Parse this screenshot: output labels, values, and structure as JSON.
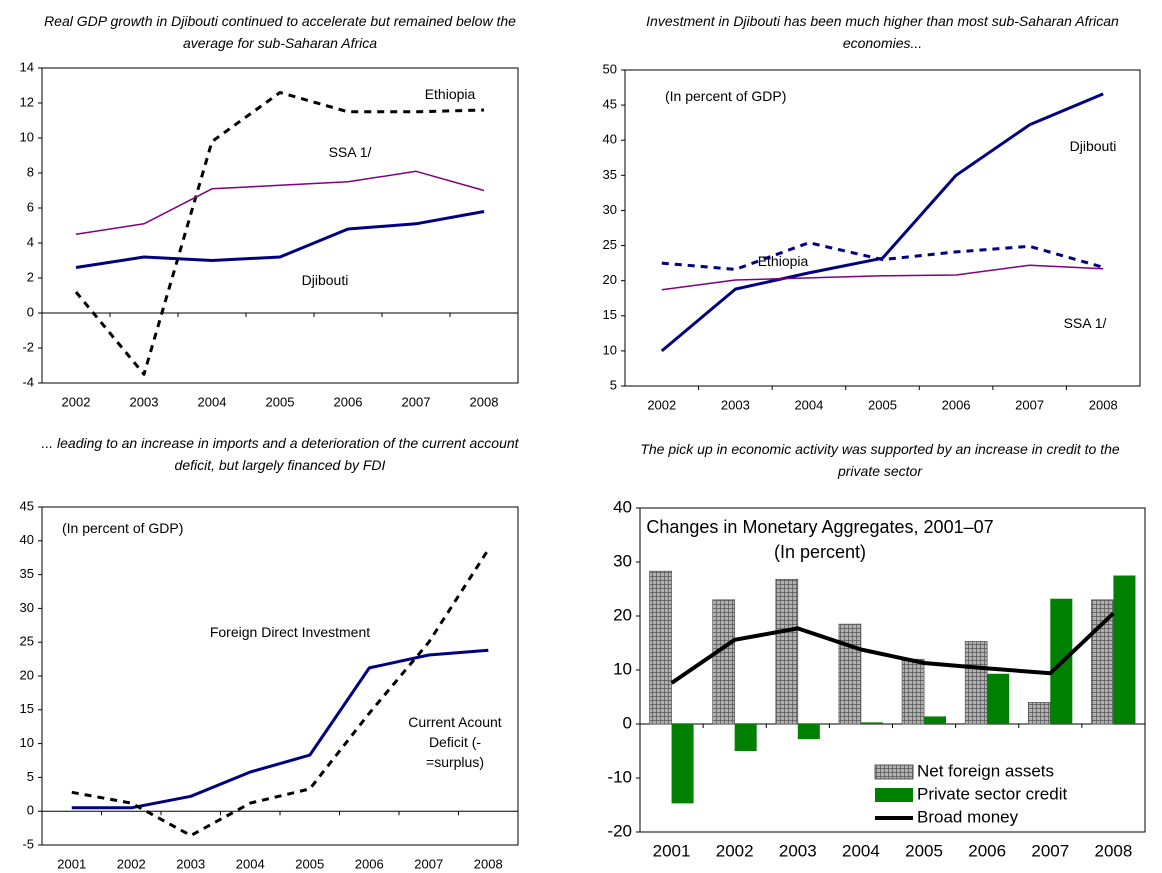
{
  "chart_data": [
    {
      "type": "line",
      "title": "Real GDP growth in Djibouti continued to accelerate but remained below the average for sub-Saharan Africa",
      "categories": [
        "2002",
        "2003",
        "2004",
        "2005",
        "2006",
        "2007",
        "2008"
      ],
      "series": [
        {
          "name": "Ethiopia",
          "color": "#000000",
          "dash": true,
          "values": [
            1.2,
            -3.5,
            9.8,
            12.6,
            11.5,
            11.5,
            11.6
          ]
        },
        {
          "name": "SSA 1/",
          "color": "#800080",
          "values": [
            4.5,
            5.1,
            7.1,
            7.3,
            7.5,
            8.1,
            7.0
          ]
        },
        {
          "name": "Djibouti",
          "color": "#000080",
          "width": 3,
          "values": [
            2.6,
            3.2,
            3.0,
            3.2,
            4.8,
            5.1,
            5.8
          ]
        }
      ],
      "ylim": [
        -4,
        14
      ],
      "yticks": [
        -4,
        -2,
        0,
        2,
        4,
        6,
        8,
        10,
        12,
        14
      ]
    },
    {
      "type": "line",
      "title": "Investment in Djibouti has been much higher than most sub-Saharan African economies...",
      "annotation": "(In percent of GDP)",
      "categories": [
        "2002",
        "2003",
        "2004",
        "2005",
        "2006",
        "2007",
        "2008"
      ],
      "series": [
        {
          "name": "Djibouti",
          "color": "#000080",
          "width": 3,
          "values": [
            10.0,
            18.8,
            21.1,
            23.2,
            35.0,
            42.2,
            46.6
          ]
        },
        {
          "name": "Ethiopia",
          "color": "#000080",
          "dash": true,
          "width": 3,
          "values": [
            22.5,
            21.6,
            25.4,
            23.0,
            24.1,
            24.9,
            21.9
          ]
        },
        {
          "name": "SSA 1/",
          "color": "#800080",
          "values": [
            18.7,
            20.1,
            20.4,
            20.7,
            20.8,
            22.2,
            21.7
          ]
        }
      ],
      "ylim": [
        5,
        50
      ],
      "yticks": [
        5,
        10,
        15,
        20,
        25,
        30,
        35,
        40,
        45,
        50
      ]
    },
    {
      "type": "line",
      "title": "... leading to an increase in imports and a deterioration of the current account deficit, but largely financed by FDI",
      "annotation": "(In percent of GDP)",
      "categories": [
        "2001",
        "2002",
        "2003",
        "2004",
        "2005",
        "2006",
        "2007",
        "2008"
      ],
      "series": [
        {
          "name": "Foreign Direct Investment",
          "color": "#000080",
          "width": 3,
          "values": [
            0.5,
            0.5,
            2.2,
            5.8,
            8.3,
            21.2,
            23.1,
            23.8
          ]
        },
        {
          "name": "Current Acount Deficit (-=surplus)",
          "color": "#000000",
          "dash": true,
          "values": [
            2.8,
            1.2,
            -3.6,
            1.2,
            3.3,
            14.5,
            25.0,
            38.7
          ]
        }
      ],
      "ylim": [
        -5,
        45
      ],
      "yticks": [
        -5,
        0,
        5,
        10,
        15,
        20,
        25,
        30,
        35,
        40,
        45
      ]
    },
    {
      "type": "bar",
      "title": "The pick up in economic activity was supported by an increase in credit to the private sector",
      "inner_title": "Changes in Monetary Aggregates, 2001–07",
      "subtitle": "(In percent)",
      "categories": [
        "2001",
        "2002",
        "2003",
        "2004",
        "2005",
        "2006",
        "2007",
        "2008"
      ],
      "series": [
        {
          "name": "Net foreign assets",
          "color": "#a0a0a0",
          "hatch": true,
          "values": [
            28.3,
            23.0,
            26.8,
            18.5,
            12.0,
            15.3,
            4.0,
            23.0
          ]
        },
        {
          "name": "Private sector credit",
          "color": "#008000",
          "values": [
            -14.7,
            -5.0,
            -2.8,
            0.3,
            1.4,
            9.3,
            23.2,
            27.5
          ]
        },
        {
          "name": "Broad money",
          "color": "#000000",
          "type": "line",
          "width": 4,
          "values": [
            7.6,
            15.6,
            17.7,
            13.8,
            11.3,
            10.3,
            9.4,
            20.5
          ]
        }
      ],
      "ylim": [
        -20,
        40
      ],
      "yticks": [
        -20,
        -10,
        0,
        10,
        20,
        30,
        40
      ],
      "legend": "lower right"
    }
  ]
}
